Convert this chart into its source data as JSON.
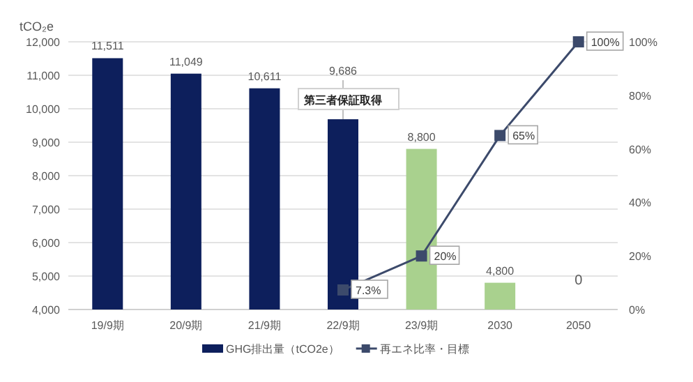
{
  "chart_data": {
    "type": "bar",
    "ylabel": "tCO₂e",
    "categories": [
      "19/9期",
      "20/9期",
      "21/9期",
      "22/9期",
      "23/9期",
      "2030",
      "2050"
    ],
    "series": [
      {
        "name": "GHG排出量（tCO2e）",
        "color": "#0d1f5c",
        "colors": [
          "#0d1f5c",
          "#0d1f5c",
          "#0d1f5c",
          "#0d1f5c",
          "#a9d18e",
          "#a9d18e",
          null
        ],
        "values": [
          11511,
          11049,
          10611,
          9686,
          8800,
          4800,
          null
        ],
        "value_labels": [
          "11,511",
          "11,049",
          "10,611",
          "9,686",
          "8,800",
          "4,800",
          "0"
        ]
      },
      {
        "name": "再エネ比率・目標",
        "type": "line",
        "axis": "y2",
        "color": "#3c4a6b",
        "marker": "square",
        "values": [
          null,
          null,
          null,
          7.3,
          20,
          65,
          100
        ],
        "value_labels": [
          null,
          null,
          null,
          "7.3%",
          "20%",
          "65%",
          "100%"
        ]
      }
    ],
    "ylim": [
      4000,
      12000
    ],
    "yticks": [
      {
        "value": 4000,
        "label": "4,000"
      },
      {
        "value": 5000,
        "label": "5,000"
      },
      {
        "value": 6000,
        "label": "6,000"
      },
      {
        "value": 7000,
        "label": "7,000"
      },
      {
        "value": 8000,
        "label": "8,000"
      },
      {
        "value": 9000,
        "label": "9,000"
      },
      {
        "value": 10000,
        "label": "10,000"
      },
      {
        "value": 11000,
        "label": "11,000"
      },
      {
        "value": 12000,
        "label": "12,000"
      }
    ],
    "y2lim": [
      0,
      100
    ],
    "y2ticks": [
      {
        "value": 0,
        "label": "0%"
      },
      {
        "value": 20,
        "label": "20%"
      },
      {
        "value": 40,
        "label": "40%"
      },
      {
        "value": 60,
        "label": "60%"
      },
      {
        "value": 80,
        "label": "80%"
      },
      {
        "value": 100,
        "label": "100%"
      }
    ],
    "annotations": [
      {
        "text": "第三者保証取得",
        "x": "22/9期",
        "y": 9686
      }
    ],
    "grid": "y",
    "legend": "bottom"
  }
}
